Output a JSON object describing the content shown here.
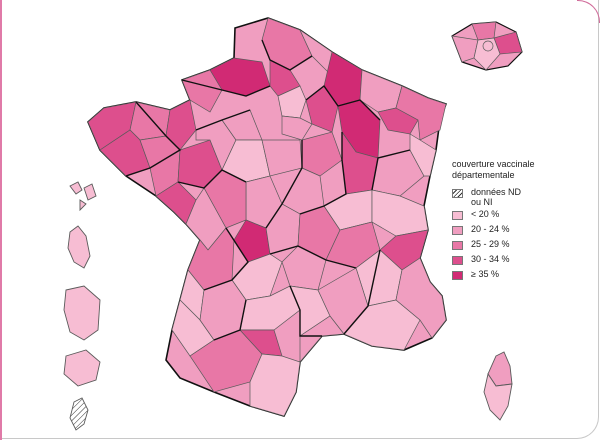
{
  "legend": {
    "title_line1": "couverture vaccinale",
    "title_line2": "départementale",
    "items": [
      {
        "label_line1": "données ND",
        "label_line2": "ou NI",
        "color": "hatch"
      },
      {
        "label_line1": "< 20 %",
        "label_line2": "",
        "color": "#f7bdd3"
      },
      {
        "label_line1": "20 - 24 %",
        "label_line2": "",
        "color": "#f09ec0"
      },
      {
        "label_line1": "25 - 29 %",
        "label_line2": "",
        "color": "#e877a6"
      },
      {
        "label_line1": "30 - 34 %",
        "label_line2": "",
        "color": "#dd4f8d"
      },
      {
        "label_line1": "≥ 35 %",
        "label_line2": "",
        "color": "#d12a74"
      }
    ]
  },
  "palette": {
    "c0": "#f7bdd3",
    "c1": "#f09ec0",
    "c2": "#e877a6",
    "c3": "#dd4f8d",
    "c4": "#d12a74",
    "border": "#5a5a5a",
    "region_border": "#111111",
    "frame_accent": "#e07aa8"
  }
}
